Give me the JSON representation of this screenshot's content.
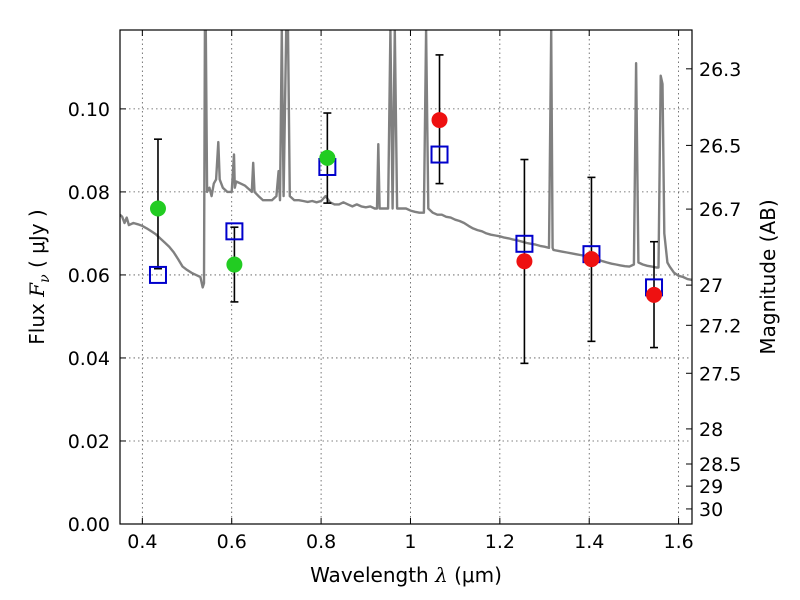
{
  "chart_data": {
    "type": "scatter",
    "xlabel_text": "Wavelength",
    "xlabel_symbol": "λ",
    "xlabel_unit": "(μm)",
    "ylabel_text": "Flux",
    "ylabel_symbol": "F",
    "ylabel_sub": "ν",
    "ylabel_unit": "( μJy )",
    "y2label": "Magnitude (AB)",
    "xlim": [
      0.35,
      1.63
    ],
    "ylim": [
      0.0,
      0.119
    ],
    "grid": true,
    "x_ticks": [
      {
        "value": 0.4,
        "label": "0.4"
      },
      {
        "value": 0.6,
        "label": "0.6"
      },
      {
        "value": 0.8,
        "label": "0.8"
      },
      {
        "value": 1.0,
        "label": "1"
      },
      {
        "value": 1.2,
        "label": "1.2"
      },
      {
        "value": 1.4,
        "label": "1.4"
      },
      {
        "value": 1.6,
        "label": "1.6"
      }
    ],
    "y_ticks": [
      {
        "value": 0.0,
        "label": "0.00"
      },
      {
        "value": 0.02,
        "label": "0.02"
      },
      {
        "value": 0.04,
        "label": "0.04"
      },
      {
        "value": 0.06,
        "label": "0.06"
      },
      {
        "value": 0.08,
        "label": "0.08"
      },
      {
        "value": 0.1,
        "label": "0.10"
      }
    ],
    "mag_ticks": [
      {
        "label": "26.3",
        "value": 26.3
      },
      {
        "label": "26.5",
        "value": 26.5
      },
      {
        "label": "26.7",
        "value": 26.7
      },
      {
        "label": "27",
        "value": 27.0
      },
      {
        "label": "27.2",
        "value": 27.2
      },
      {
        "label": "27.5",
        "value": 27.5
      },
      {
        "label": "28",
        "value": 28.0
      },
      {
        "label": "28.5",
        "value": 28.5
      },
      {
        "label": "29",
        "value": 29.0
      },
      {
        "label": "30",
        "value": 30.0
      }
    ],
    "colors": {
      "model": "#808080",
      "green": "#22cc22",
      "red": "#ee1111",
      "box": "#0000cc",
      "errorbar": "#000000"
    },
    "observed": [
      {
        "x": 0.435,
        "y": 0.076,
        "y_low": 0.0615,
        "y_high": 0.0927,
        "color": "green"
      },
      {
        "x": 0.606,
        "y": 0.0625,
        "y_low": 0.0535,
        "y_high": 0.0715,
        "color": "green"
      },
      {
        "x": 0.814,
        "y": 0.0882,
        "y_low": 0.0773,
        "y_high": 0.099,
        "color": "green"
      },
      {
        "x": 1.065,
        "y": 0.0973,
        "y_low": 0.082,
        "y_high": 0.113,
        "color": "red"
      },
      {
        "x": 1.255,
        "y": 0.0633,
        "y_low": 0.0387,
        "y_high": 0.0878,
        "color": "red"
      },
      {
        "x": 1.405,
        "y": 0.0638,
        "y_low": 0.044,
        "y_high": 0.0835,
        "color": "red"
      },
      {
        "x": 1.545,
        "y": 0.0552,
        "y_low": 0.0425,
        "y_high": 0.068,
        "color": "red"
      }
    ],
    "model_photometry": [
      {
        "x": 0.435,
        "y": 0.06
      },
      {
        "x": 0.606,
        "y": 0.0705
      },
      {
        "x": 0.814,
        "y": 0.086
      },
      {
        "x": 1.065,
        "y": 0.089
      },
      {
        "x": 1.255,
        "y": 0.0675
      },
      {
        "x": 1.405,
        "y": 0.065
      },
      {
        "x": 1.545,
        "y": 0.057
      }
    ],
    "model_spectrum": [
      [
        0.35,
        0.0745
      ],
      [
        0.355,
        0.074
      ],
      [
        0.36,
        0.0725
      ],
      [
        0.365,
        0.0738
      ],
      [
        0.37,
        0.072
      ],
      [
        0.38,
        0.0725
      ],
      [
        0.39,
        0.0722
      ],
      [
        0.4,
        0.0718
      ],
      [
        0.41,
        0.0712
      ],
      [
        0.42,
        0.0705
      ],
      [
        0.43,
        0.0698
      ],
      [
        0.44,
        0.0688
      ],
      [
        0.45,
        0.0678
      ],
      [
        0.46,
        0.0668
      ],
      [
        0.47,
        0.0655
      ],
      [
        0.48,
        0.0638
      ],
      [
        0.49,
        0.062
      ],
      [
        0.5,
        0.0612
      ],
      [
        0.51,
        0.0605
      ],
      [
        0.52,
        0.06
      ],
      [
        0.53,
        0.0595
      ],
      [
        0.535,
        0.057
      ],
      [
        0.538,
        0.058
      ],
      [
        0.54,
        0.119
      ],
      [
        0.542,
        0.119
      ],
      [
        0.545,
        0.08
      ],
      [
        0.55,
        0.081
      ],
      [
        0.555,
        0.079
      ],
      [
        0.56,
        0.082
      ],
      [
        0.565,
        0.083
      ],
      [
        0.57,
        0.092
      ],
      [
        0.573,
        0.083
      ],
      [
        0.58,
        0.081
      ],
      [
        0.59,
        0.08
      ],
      [
        0.6,
        0.08
      ],
      [
        0.605,
        0.089
      ],
      [
        0.607,
        0.081
      ],
      [
        0.61,
        0.0825
      ],
      [
        0.62,
        0.082
      ],
      [
        0.63,
        0.0815
      ],
      [
        0.64,
        0.0805
      ],
      [
        0.645,
        0.08
      ],
      [
        0.648,
        0.087
      ],
      [
        0.651,
        0.08
      ],
      [
        0.66,
        0.079
      ],
      [
        0.67,
        0.078
      ],
      [
        0.68,
        0.078
      ],
      [
        0.69,
        0.078
      ],
      [
        0.7,
        0.079
      ],
      [
        0.705,
        0.085
      ],
      [
        0.708,
        0.078
      ],
      [
        0.712,
        0.119
      ],
      [
        0.716,
        0.079
      ],
      [
        0.722,
        0.119
      ],
      [
        0.726,
        0.119
      ],
      [
        0.73,
        0.079
      ],
      [
        0.74,
        0.078
      ],
      [
        0.75,
        0.078
      ],
      [
        0.76,
        0.0778
      ],
      [
        0.77,
        0.0776
      ],
      [
        0.78,
        0.0778
      ],
      [
        0.79,
        0.0775
      ],
      [
        0.8,
        0.0778
      ],
      [
        0.81,
        0.079
      ],
      [
        0.82,
        0.0775
      ],
      [
        0.83,
        0.077
      ],
      [
        0.84,
        0.077
      ],
      [
        0.85,
        0.0775
      ],
      [
        0.86,
        0.077
      ],
      [
        0.87,
        0.0765
      ],
      [
        0.88,
        0.077
      ],
      [
        0.89,
        0.0765
      ],
      [
        0.9,
        0.0763
      ],
      [
        0.91,
        0.0765
      ],
      [
        0.92,
        0.076
      ],
      [
        0.925,
        0.076
      ],
      [
        0.928,
        0.0915
      ],
      [
        0.931,
        0.076
      ],
      [
        0.94,
        0.076
      ],
      [
        0.95,
        0.076
      ],
      [
        0.955,
        0.119
      ],
      [
        0.96,
        0.076
      ],
      [
        0.965,
        0.119
      ],
      [
        0.97,
        0.076
      ],
      [
        0.98,
        0.076
      ],
      [
        0.99,
        0.076
      ],
      [
        1.0,
        0.0755
      ],
      [
        1.01,
        0.0752
      ],
      [
        1.02,
        0.075
      ],
      [
        1.03,
        0.075
      ],
      [
        1.035,
        0.119
      ],
      [
        1.04,
        0.076
      ],
      [
        1.05,
        0.075
      ],
      [
        1.06,
        0.0745
      ],
      [
        1.07,
        0.0745
      ],
      [
        1.08,
        0.074
      ],
      [
        1.09,
        0.0738
      ],
      [
        1.1,
        0.0733
      ],
      [
        1.11,
        0.073
      ],
      [
        1.12,
        0.0725
      ],
      [
        1.13,
        0.0718
      ],
      [
        1.14,
        0.0712
      ],
      [
        1.15,
        0.0708
      ],
      [
        1.16,
        0.0705
      ],
      [
        1.17,
        0.07
      ],
      [
        1.18,
        0.0697
      ],
      [
        1.19,
        0.0695
      ],
      [
        1.2,
        0.0693
      ],
      [
        1.21,
        0.069
      ],
      [
        1.22,
        0.0688
      ],
      [
        1.23,
        0.0685
      ],
      [
        1.24,
        0.0683
      ],
      [
        1.25,
        0.068
      ],
      [
        1.26,
        0.0677
      ],
      [
        1.27,
        0.0675
      ],
      [
        1.28,
        0.0673
      ],
      [
        1.29,
        0.067
      ],
      [
        1.3,
        0.0668
      ],
      [
        1.31,
        0.0665
      ],
      [
        1.315,
        0.119
      ],
      [
        1.318,
        0.0665
      ],
      [
        1.32,
        0.066
      ],
      [
        1.33,
        0.0658
      ],
      [
        1.34,
        0.0656
      ],
      [
        1.35,
        0.0654
      ],
      [
        1.36,
        0.0652
      ],
      [
        1.37,
        0.065
      ],
      [
        1.38,
        0.0648
      ],
      [
        1.39,
        0.0646
      ],
      [
        1.4,
        0.0644
      ],
      [
        1.41,
        0.064
      ],
      [
        1.42,
        0.0637
      ],
      [
        1.43,
        0.0633
      ],
      [
        1.44,
        0.063
      ],
      [
        1.45,
        0.0627
      ],
      [
        1.46,
        0.0625
      ],
      [
        1.47,
        0.0623
      ],
      [
        1.48,
        0.0621
      ],
      [
        1.49,
        0.062
      ],
      [
        1.5,
        0.0625
      ],
      [
        1.505,
        0.111
      ],
      [
        1.51,
        0.063
      ],
      [
        1.52,
        0.0625
      ],
      [
        1.53,
        0.0622
      ],
      [
        1.54,
        0.062
      ],
      [
        1.55,
        0.0618
      ],
      [
        1.555,
        0.0618
      ],
      [
        1.56,
        0.108
      ],
      [
        1.564,
        0.106
      ],
      [
        1.568,
        0.07
      ],
      [
        1.575,
        0.063
      ],
      [
        1.58,
        0.062
      ],
      [
        1.59,
        0.0605
      ],
      [
        1.6,
        0.0598
      ],
      [
        1.61,
        0.0595
      ],
      [
        1.62,
        0.059
      ],
      [
        1.63,
        0.0588
      ]
    ]
  }
}
